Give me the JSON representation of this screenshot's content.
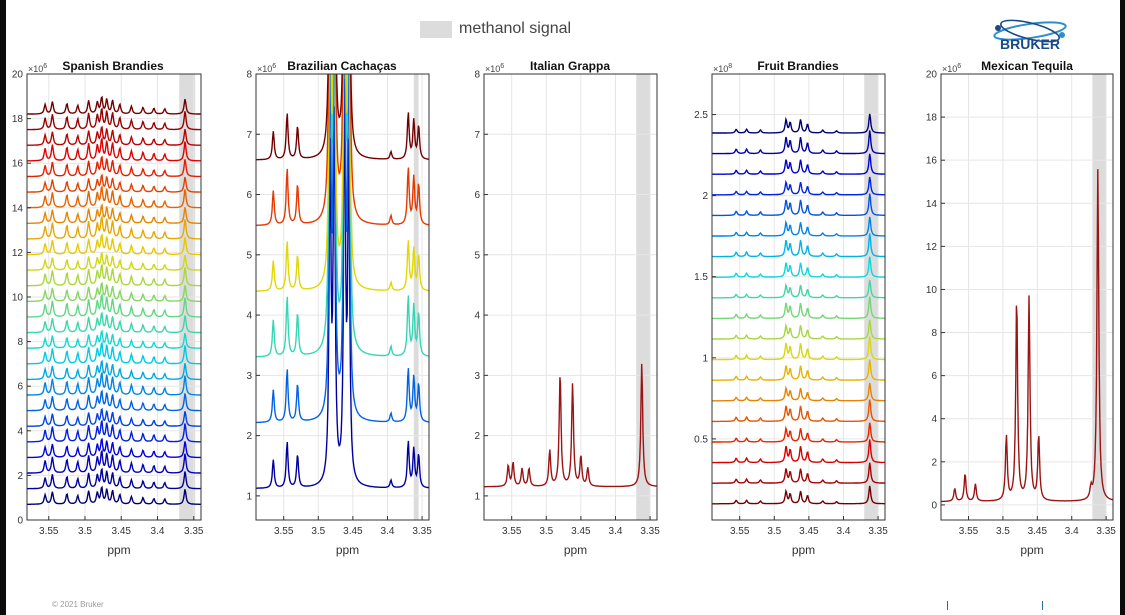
{
  "legend": {
    "label": "methanol signal",
    "swatch_color": "#dcdcdc"
  },
  "logo": {
    "text": "BRUKER",
    "color": "#1a4a8a"
  },
  "footer": {
    "copyright": "© 2021 Bruker"
  },
  "chart_data": [
    {
      "type": "line",
      "title": "Spanish Brandies",
      "xlabel": "ppm",
      "exponent": "6",
      "xlim": [
        3.58,
        3.34
      ],
      "xticks": [
        3.55,
        3.5,
        3.45,
        3.4,
        3.35
      ],
      "xtick_labels": [
        "3.55",
        "3.5",
        "3.45",
        "3.4",
        "3.35"
      ],
      "ylim": [
        0,
        20
      ],
      "yticks": [
        0,
        2,
        4,
        6,
        8,
        10,
        12,
        14,
        16,
        18,
        20
      ],
      "ytick_labels": [
        "0",
        "2",
        "4",
        "6",
        "8",
        "10",
        "12",
        "14",
        "16",
        "18",
        "20"
      ],
      "methanol_band": [
        3.37,
        3.348
      ],
      "series_count": 26,
      "baseline_start": 0.7,
      "baseline_step": 0.7,
      "peak_height": 0.5,
      "colormap": "jet",
      "peaks": [
        [
          3.555,
          1.0
        ],
        [
          3.545,
          1.3
        ],
        [
          3.525,
          1.1
        ],
        [
          3.51,
          0.9
        ],
        [
          3.495,
          1.4
        ],
        [
          3.483,
          1.2
        ],
        [
          3.477,
          1.7
        ],
        [
          3.47,
          1.5
        ],
        [
          3.462,
          1.4
        ],
        [
          3.452,
          1.0
        ],
        [
          3.436,
          0.8
        ],
        [
          3.42,
          0.7
        ],
        [
          3.405,
          0.6
        ],
        [
          3.39,
          0.55
        ],
        [
          3.362,
          1.6
        ]
      ]
    },
    {
      "type": "line",
      "title": "Brazilian Cachaças",
      "xlabel": "ppm",
      "exponent": "6",
      "xlim": [
        3.59,
        3.34
      ],
      "xticks": [
        3.55,
        3.5,
        3.45,
        3.4,
        3.35
      ],
      "xtick_labels": [
        "3.55",
        "3.5",
        "3.45",
        "3.4",
        "3.35"
      ],
      "ylim": [
        0.6,
        8
      ],
      "yticks": [
        1,
        2,
        3,
        4,
        5,
        6,
        7,
        8
      ],
      "ytick_labels": [
        "1",
        "2",
        "3",
        "4",
        "5",
        "6",
        "7",
        "8"
      ],
      "methanol_band": [
        3.362,
        3.355
      ],
      "series_count": 6,
      "baseline_start": 1.12,
      "baseline_step": 1.09,
      "peak_height": 1.0,
      "colormap": "jet_dark",
      "peaks": [
        [
          3.565,
          0.55
        ],
        [
          3.545,
          0.9
        ],
        [
          3.53,
          0.65
        ],
        [
          3.483,
          6.5
        ],
        [
          3.477,
          7.5
        ],
        [
          3.462,
          7.5
        ],
        [
          3.456,
          6.5
        ],
        [
          3.395,
          0.15
        ],
        [
          3.37,
          0.9
        ],
        [
          3.362,
          0.75
        ],
        [
          3.355,
          0.65
        ]
      ]
    },
    {
      "type": "line",
      "title": "Italian Grappa",
      "xlabel": "ppm",
      "exponent": "6",
      "xlim": [
        3.59,
        3.34
      ],
      "xticks": [
        3.55,
        3.5,
        3.45,
        3.4,
        3.35
      ],
      "xtick_labels": [
        "3.55",
        "3.5",
        "3.45",
        "3.4",
        "3.35"
      ],
      "ylim": [
        0.6,
        8
      ],
      "yticks": [
        1,
        2,
        3,
        4,
        5,
        6,
        7,
        8
      ],
      "ytick_labels": [
        "1",
        "2",
        "3",
        "4",
        "5",
        "6",
        "7",
        "8"
      ],
      "methanol_band": [
        3.37,
        3.35
      ],
      "series_count": 1,
      "baseline_start": 1.15,
      "baseline_step": 0,
      "peak_height": 1.0,
      "colormap": "single_darkred",
      "peaks": [
        [
          3.555,
          0.35
        ],
        [
          3.548,
          0.4
        ],
        [
          3.535,
          0.3
        ],
        [
          3.525,
          0.3
        ],
        [
          3.495,
          0.6
        ],
        [
          3.48,
          1.9
        ],
        [
          3.462,
          1.7
        ],
        [
          3.45,
          0.5
        ],
        [
          3.44,
          0.3
        ],
        [
          3.362,
          2.05
        ]
      ]
    },
    {
      "type": "line",
      "title": "Fruit Brandies",
      "xlabel": "ppm",
      "exponent": "8",
      "xlim": [
        3.59,
        3.34
      ],
      "xticks": [
        3.55,
        3.5,
        3.45,
        3.4,
        3.35
      ],
      "xtick_labels": [
        "3.55",
        "3.5",
        "3.45",
        "3.4",
        "3.35"
      ],
      "ylim": [
        0,
        2.75
      ],
      "yticks": [
        0.5,
        1,
        1.5,
        2,
        2.5
      ],
      "ytick_labels": [
        "0.5",
        "1",
        "1.5",
        "2",
        "2.5"
      ],
      "methanol_band": [
        3.37,
        3.35
      ],
      "series_count": 19,
      "baseline_start": 0.1,
      "baseline_step": 0.127,
      "peak_height": 0.1,
      "colormap": "jet_reversed",
      "peaks": [
        [
          3.555,
          0.25
        ],
        [
          3.54,
          0.25
        ],
        [
          3.52,
          0.2
        ],
        [
          3.483,
          0.9
        ],
        [
          3.477,
          0.7
        ],
        [
          3.462,
          0.9
        ],
        [
          3.452,
          0.6
        ],
        [
          3.43,
          0.2
        ],
        [
          3.41,
          0.15
        ],
        [
          3.362,
          1.3
        ]
      ]
    },
    {
      "type": "line",
      "title": "Mexican Tequila",
      "xlabel": "ppm",
      "exponent": "6",
      "xlim": [
        3.59,
        3.34
      ],
      "xticks": [
        3.55,
        3.5,
        3.45,
        3.4,
        3.35
      ],
      "xtick_labels": [
        "3.55",
        "3.5",
        "3.45",
        "3.4",
        "3.35"
      ],
      "ylim": [
        -0.7,
        20
      ],
      "yticks": [
        0,
        2,
        4,
        6,
        8,
        10,
        12,
        14,
        16,
        18,
        20
      ],
      "ytick_labels": [
        "0",
        "2",
        "4",
        "6",
        "8",
        "10",
        "12",
        "14",
        "16",
        "18",
        "20"
      ],
      "methanol_band": [
        3.37,
        3.35
      ],
      "series_count": 1,
      "baseline_start": 0.15,
      "baseline_step": 0,
      "peak_height": 1.0,
      "colormap": "single_darkred",
      "peaks": [
        [
          3.57,
          0.6
        ],
        [
          3.555,
          1.3
        ],
        [
          3.54,
          0.8
        ],
        [
          3.495,
          3.0
        ],
        [
          3.48,
          9.5
        ],
        [
          3.462,
          9.5
        ],
        [
          3.448,
          3.0
        ],
        [
          3.372,
          0.5
        ],
        [
          3.362,
          15.5
        ]
      ]
    }
  ]
}
